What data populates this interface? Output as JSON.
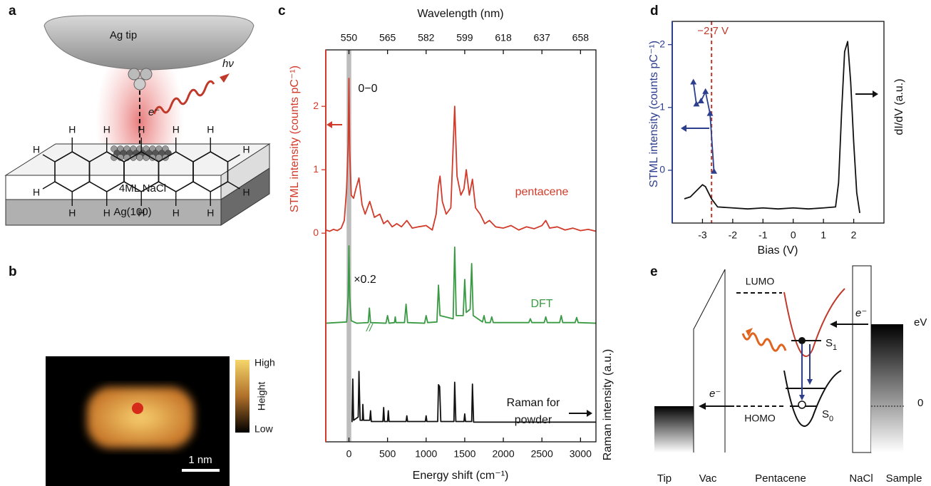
{
  "panel_labels": [
    "a",
    "b",
    "c",
    "d",
    "e"
  ],
  "panel_a": {
    "tip": "Ag tip",
    "photon": "hν",
    "electron": "e⁻",
    "layer": "4ML NaCl",
    "substrate": "Ag(100)"
  },
  "panel_b": {
    "hydrogens": [
      "H",
      "H",
      "H",
      "H",
      "H",
      "H",
      "H",
      "H",
      "H",
      "H",
      "H",
      "H",
      "H",
      "H"
    ],
    "colorbar_high": "High",
    "colorbar_title": "Height",
    "colorbar_low": "Low",
    "scale_bar": "1 nm"
  },
  "panel_e": {
    "lumo": "LUMO",
    "homo": "HOMO",
    "electron_tip": "e⁻",
    "electron_sample": "e⁻",
    "s1": {
      "symbol": "S",
      "subscript": "1"
    },
    "s0": {
      "symbol": "S",
      "subscript": "0"
    },
    "energy_unit": "eV",
    "zero": "0",
    "labels": [
      "Tip",
      "Vac",
      "Pentacene",
      "NaCl",
      "Sample"
    ]
  },
  "chart_data": [
    {
      "type": "line",
      "xlabel": "Energy shift (cm⁻¹)",
      "x2label": "Wavelength (nm)",
      "ylabel": "STML intensity (counts pC⁻¹)",
      "y2label": "Raman intensity (a.u.)",
      "ycolor": "#d23a2a",
      "xlim": [
        -300,
        3200
      ],
      "xticks": [
        0,
        500,
        1000,
        1500,
        2000,
        2500,
        3000
      ],
      "x2ticks": [
        {
          "value": 0,
          "label": "550"
        },
        {
          "value": 500,
          "label": "565"
        },
        {
          "value": 1000,
          "label": "582"
        },
        {
          "value": 1500,
          "label": "599"
        },
        {
          "value": 2000,
          "label": "618"
        },
        {
          "value": 2500,
          "label": "637"
        },
        {
          "value": 3000,
          "label": "658"
        }
      ],
      "ylim": [
        -3.29,
        2.89
      ],
      "yticks": [
        0,
        1,
        2
      ],
      "highlight_x": [
        -30,
        30
      ],
      "annotations": {
        "peak": "0−0",
        "scale": "×0.2",
        "raman": [
          "Raman for",
          "powder"
        ]
      },
      "series": [
        {
          "name": "pentacene",
          "color": "#d23a2a",
          "x": [
            -300,
            -250,
            -200,
            -150,
            -100,
            -60,
            -30,
            -10,
            0,
            10,
            30,
            60,
            90,
            130,
            170,
            210,
            270,
            330,
            400,
            450,
            500,
            560,
            620,
            680,
            750,
            820,
            900,
            1000,
            1080,
            1130,
            1160,
            1180,
            1210,
            1260,
            1320,
            1370,
            1400,
            1450,
            1490,
            1520,
            1560,
            1600,
            1640,
            1700,
            1760,
            1820,
            1900,
            2000,
            2100,
            2200,
            2300,
            2400,
            2500,
            2550,
            2600,
            2700,
            2800,
            2900,
            3000,
            3100,
            3200
          ],
          "values": [
            0.05,
            0.03,
            0.06,
            0.04,
            0.08,
            0.2,
            0.7,
            1.4,
            2.44,
            1.3,
            0.6,
            0.55,
            0.7,
            0.87,
            0.45,
            0.3,
            0.5,
            0.25,
            0.3,
            0.15,
            0.2,
            0.1,
            0.15,
            0.1,
            0.2,
            0.08,
            0.1,
            0.12,
            0.05,
            0.3,
            0.75,
            0.9,
            0.5,
            0.3,
            0.4,
            2.0,
            0.9,
            0.6,
            0.7,
            1.0,
            0.6,
            0.85,
            0.4,
            0.3,
            0.15,
            0.2,
            0.1,
            0.08,
            0.12,
            0.05,
            0.1,
            0.07,
            0.12,
            0.2,
            0.08,
            0.1,
            0.05,
            0.08,
            0.04,
            0.06,
            0.03
          ]
        },
        {
          "name": "DFT",
          "color": "#3a9a44",
          "x": [
            -300,
            -30,
            -10,
            0,
            10,
            30,
            100,
            250,
            265,
            280,
            480,
            500,
            520,
            590,
            600,
            610,
            720,
            740,
            760,
            980,
            1000,
            1020,
            1140,
            1160,
            1180,
            1350,
            1370,
            1390,
            1480,
            1500,
            1520,
            1570,
            1590,
            1610,
            1730,
            1750,
            1770,
            1830,
            1850,
            1870,
            2330,
            2350,
            2370,
            2530,
            2550,
            2570,
            2730,
            2750,
            2770,
            2930,
            2950,
            2970,
            3200
          ],
          "values": [
            -1.42,
            -1.4,
            -1.0,
            -0.2,
            -1.0,
            -1.38,
            -1.42,
            -1.41,
            -1.18,
            -1.41,
            -1.42,
            -1.3,
            -1.42,
            -1.41,
            -1.32,
            -1.41,
            -1.41,
            -1.12,
            -1.41,
            -1.42,
            -1.3,
            -1.41,
            -1.4,
            -0.82,
            -1.3,
            -1.35,
            -0.22,
            -1.3,
            -1.3,
            -0.73,
            -1.25,
            -1.2,
            -0.48,
            -1.3,
            -1.4,
            -1.3,
            -1.41,
            -1.41,
            -1.32,
            -1.41,
            -1.41,
            -1.35,
            -1.41,
            -1.41,
            -1.32,
            -1.41,
            -1.41,
            -1.3,
            -1.41,
            -1.41,
            -1.33,
            -1.41,
            -1.42
          ]
        },
        {
          "color": "#111111",
          "x": [
            40,
            50,
            60,
            120,
            130,
            145,
            175,
            180,
            190,
            270,
            280,
            290,
            440,
            450,
            460,
            500,
            510,
            520,
            740,
            750,
            760,
            990,
            1000,
            1010,
            1150,
            1160,
            1175,
            1190,
            1360,
            1370,
            1385,
            1490,
            1500,
            1510,
            1590,
            1600,
            1615,
            3200
          ],
          "values": [
            -2.98,
            -2.3,
            -2.95,
            -2.9,
            -2.18,
            -2.95,
            -2.95,
            -2.7,
            -2.95,
            -2.95,
            -2.8,
            -2.97,
            -2.97,
            -2.75,
            -2.97,
            -2.97,
            -2.8,
            -2.97,
            -2.97,
            -2.88,
            -2.97,
            -2.97,
            -2.88,
            -2.97,
            -2.97,
            -2.39,
            -2.42,
            -2.97,
            -2.97,
            -2.35,
            -2.97,
            -2.97,
            -2.85,
            -2.97,
            -2.97,
            -2.38,
            -2.98,
            -2.98
          ]
        }
      ]
    },
    {
      "type": "line",
      "xlabel": "Bias (V)",
      "ylabel": "STML intensity (counts pC⁻¹)",
      "y2label": "dI/dV (a.u.)",
      "ycolor": "#2c3e8c",
      "xlim": [
        -4.0,
        3.0
      ],
      "xticks": [
        -3,
        -2,
        -1,
        0,
        1,
        2
      ],
      "ylim": [
        -0.84,
        2.37
      ],
      "yticks": [
        0,
        1,
        2
      ],
      "y2lim": [
        0,
        1
      ],
      "vline": {
        "x": -2.7,
        "label": "−2.7 V",
        "color": "#c0392b"
      },
      "series": [
        {
          "color": "#2c3e8c",
          "marker": "triangle",
          "x": [
            -3.3,
            -3.2,
            -3.05,
            -2.9,
            -2.75,
            -2.62
          ],
          "values": [
            1.4,
            1.05,
            1.1,
            1.25,
            0.9,
            -0.02
          ]
        },
        {
          "color": "#111111",
          "axis": "y2",
          "x": [
            -3.6,
            -3.4,
            -3.2,
            -3.0,
            -2.9,
            -2.7,
            -2.5,
            -2.0,
            -1.5,
            -1.0,
            -0.5,
            0,
            0.5,
            1.0,
            1.4,
            1.5,
            1.6,
            1.7,
            1.8,
            1.9,
            2.0,
            2.1,
            2.2
          ],
          "values": [
            0.12,
            0.13,
            0.16,
            0.19,
            0.18,
            0.12,
            0.08,
            0.075,
            0.07,
            0.075,
            0.07,
            0.075,
            0.07,
            0.075,
            0.08,
            0.2,
            0.55,
            0.85,
            0.9,
            0.7,
            0.4,
            0.15,
            0.05
          ]
        }
      ]
    }
  ]
}
